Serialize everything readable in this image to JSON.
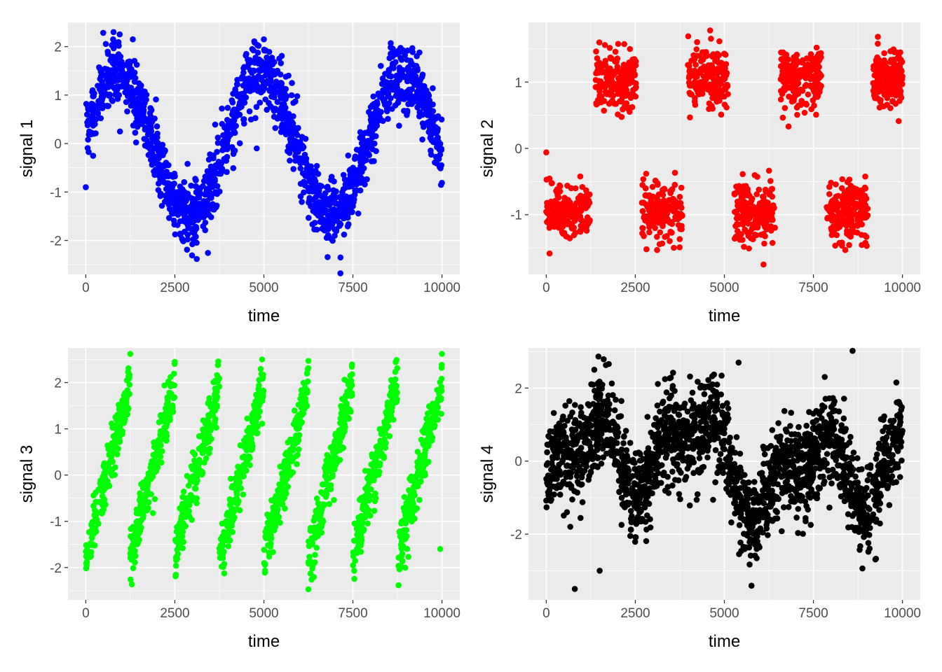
{
  "chart_data": [
    {
      "type": "scatter",
      "xlabel": "time",
      "ylabel": "signal 1",
      "color": "#0000ff",
      "xlim": [
        -500,
        10500
      ],
      "ylim": [
        -2.7,
        2.5
      ],
      "x_ticks": [
        0,
        2500,
        5000,
        7500,
        10000
      ],
      "y_ticks": [
        -2,
        -1,
        0,
        1,
        2
      ],
      "pattern": "sine",
      "period": 4000,
      "phase": 0,
      "amplitude": 1.45,
      "noise_sd": 0.33,
      "n_points": 1700,
      "outliers": [
        [
          0,
          -0.9
        ],
        [
          780,
          2.3
        ],
        [
          1320,
          2.15
        ],
        [
          960,
          0.25
        ],
        [
          7150,
          -2.35
        ],
        [
          5000,
          2.15
        ],
        [
          4800,
          -0.1
        ]
      ],
      "grid": true
    },
    {
      "type": "scatter",
      "xlabel": "time",
      "ylabel": "signal 2",
      "color": "#ff0000",
      "xlim": [
        -500,
        10500
      ],
      "ylim": [
        -1.9,
        1.9
      ],
      "x_ticks": [
        0,
        2500,
        5000,
        7500,
        10000
      ],
      "y_ticks": [
        -1,
        0,
        1
      ],
      "pattern": "square",
      "segments": [
        {
          "x": [
            0,
            1300
          ],
          "y": -0.95
        },
        {
          "x": [
            1300,
            2600
          ],
          "y": 1.05
        },
        {
          "x": [
            2600,
            3900
          ],
          "y": -0.95
        },
        {
          "x": [
            3900,
            5200
          ],
          "y": 1.05
        },
        {
          "x": [
            5200,
            6500
          ],
          "y": -0.95
        },
        {
          "x": [
            6500,
            7800
          ],
          "y": 1.05
        },
        {
          "x": [
            7800,
            9100
          ],
          "y": -0.95
        },
        {
          "x": [
            9100,
            10000
          ],
          "y": 1.05
        }
      ],
      "gap": 150,
      "noise_sd": 0.22,
      "n_points": 1500,
      "outliers": [
        [
          0,
          -0.06
        ],
        [
          4600,
          1.78
        ],
        [
          6100,
          -1.75
        ],
        [
          6800,
          0.33
        ]
      ],
      "grid": true
    },
    {
      "type": "scatter",
      "xlabel": "time",
      "ylabel": "signal 3",
      "color": "#00ff00",
      "xlim": [
        -500,
        10500
      ],
      "ylim": [
        -2.7,
        2.75
      ],
      "x_ticks": [
        0,
        2500,
        5000,
        7500,
        10000
      ],
      "y_ticks": [
        -2,
        -1,
        0,
        1,
        2
      ],
      "pattern": "sawtooth",
      "period": 1250,
      "low": -1.8,
      "high": 2.0,
      "noise_sd": 0.28,
      "n_points": 1700,
      "outliers": [
        [
          1250,
          2.62
        ],
        [
          4950,
          2.5
        ],
        [
          6250,
          2.47
        ],
        [
          9950,
          -1.6
        ],
        [
          6250,
          -2.47
        ]
      ],
      "grid": true
    },
    {
      "type": "scatter",
      "xlabel": "time",
      "ylabel": "signal 4",
      "color": "#000000",
      "xlim": [
        -500,
        10500
      ],
      "ylim": [
        -3.8,
        3.1
      ],
      "x_ticks": [
        0,
        2500,
        5000,
        7500,
        10000
      ],
      "y_ticks": [
        -2,
        0,
        2
      ],
      "pattern": "composite",
      "noise_sd": 0.62,
      "n_points": 2000,
      "outliers": [
        [
          800,
          -3.5
        ],
        [
          8600,
          3.02
        ],
        [
          5400,
          2.7
        ],
        [
          1500,
          -3.0
        ]
      ],
      "grid": true
    }
  ]
}
